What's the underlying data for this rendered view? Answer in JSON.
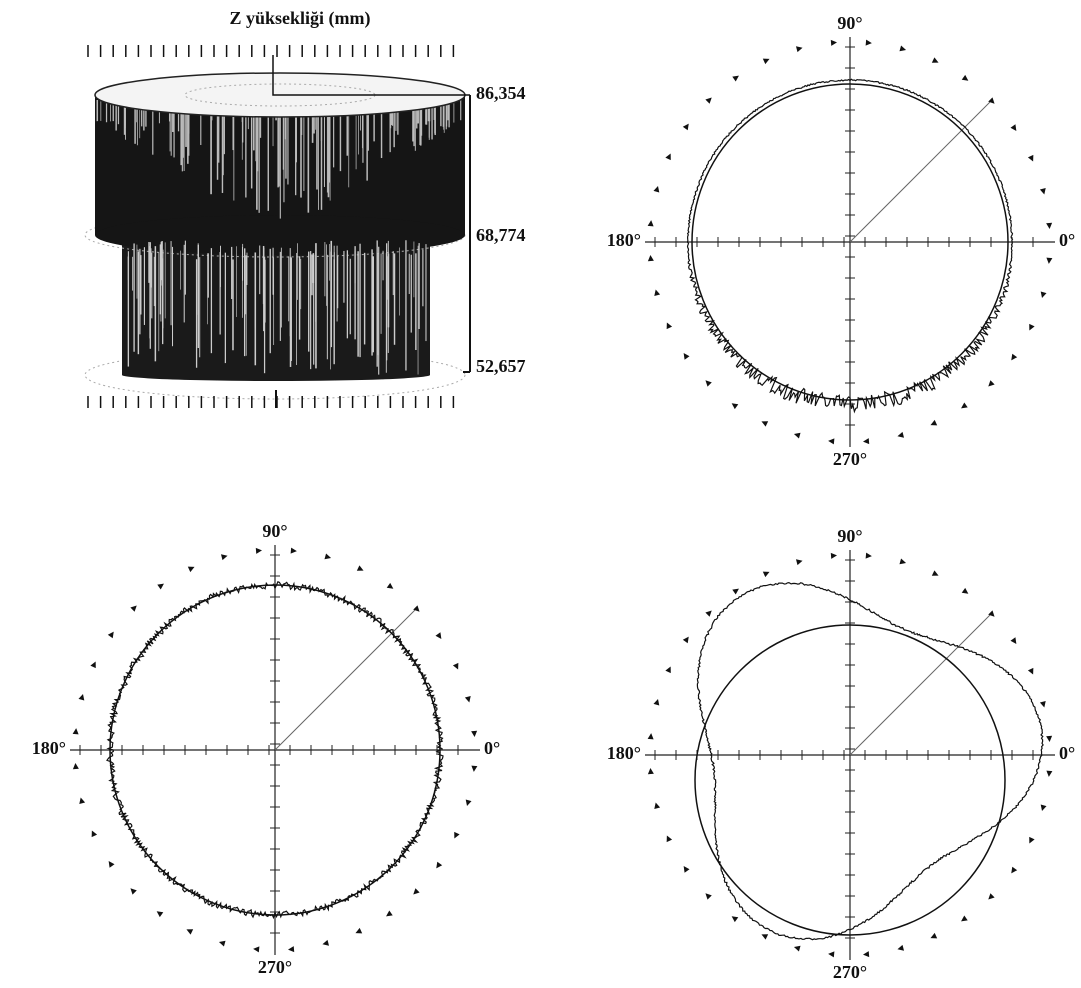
{
  "cylinder": {
    "title": "Z yüksekliği (mm)",
    "z_labels": [
      "86,354",
      "68,774",
      "52,657"
    ]
  },
  "polar_plots": [
    {
      "angle_labels": {
        "top": "90°",
        "left": "180°",
        "right": "0°",
        "bottom": "270°"
      }
    },
    {
      "angle_labels": {
        "top": "90°",
        "left": "180°",
        "right": "0°",
        "bottom": "270°"
      }
    },
    {
      "angle_labels": {
        "top": "90°",
        "left": "180°",
        "right": "0°",
        "bottom": "270°"
      }
    }
  ]
}
